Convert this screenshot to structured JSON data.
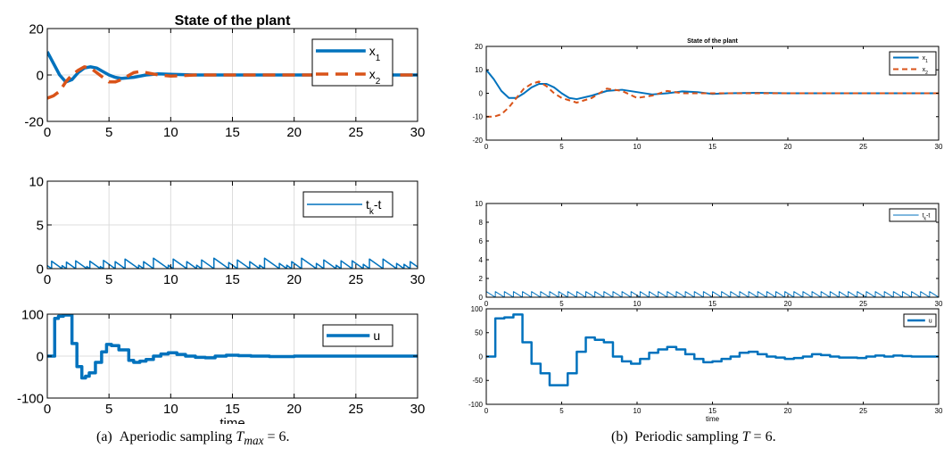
{
  "captions": {
    "a_label": "(a)",
    "a_text": "Aperiodic sampling",
    "a_sym": "T",
    "a_sub": "max",
    "a_val": " = 6.",
    "b_label": "(b)",
    "b_text": "Periodic sampling",
    "b_sym": "T",
    "b_val": " = 6."
  },
  "colors": {
    "x1": "#0072BD",
    "x2": "#D95319",
    "u": "#0072BD",
    "tk": "#0072BD"
  },
  "chart_data": [
    {
      "panel": "a",
      "type": "line",
      "title": "State of the plant",
      "xlabel": "",
      "ylabel": "",
      "xlim": [
        0,
        30
      ],
      "ylim": [
        -20,
        20
      ],
      "yticks": [
        -20,
        0,
        20
      ],
      "xticks": [
        0,
        5,
        10,
        15,
        20,
        25,
        30
      ],
      "grid": true,
      "legend_position": "top-right",
      "series": [
        {
          "name": "x1",
          "legend_label": "x",
          "legend_sub": "1",
          "style": "solid",
          "x": [
            0,
            0.5,
            1,
            1.5,
            2,
            2.5,
            3,
            3.5,
            4,
            4.5,
            5,
            5.5,
            6,
            7,
            8,
            9,
            10,
            12,
            14,
            16,
            18,
            20,
            25,
            30
          ],
          "y": [
            10,
            5,
            0,
            -3,
            -2,
            1,
            3,
            3.5,
            3,
            1.5,
            0,
            -1,
            -1.5,
            -1,
            0,
            0.5,
            0.3,
            0,
            0,
            0,
            0,
            0,
            0,
            0
          ]
        },
        {
          "name": "x2",
          "legend_label": "x",
          "legend_sub": "2",
          "style": "dashed",
          "x": [
            0,
            0.5,
            1,
            1.5,
            2,
            2.5,
            3,
            3.5,
            4,
            4.5,
            5,
            5.5,
            6,
            6.5,
            7,
            7.5,
            8,
            9,
            10,
            12,
            14,
            16,
            20,
            25,
            30
          ],
          "y": [
            -10,
            -9,
            -7,
            -3,
            0,
            2,
            3.5,
            3,
            1,
            -1,
            -3,
            -3,
            -2,
            -0.5,
            1,
            1.5,
            1,
            0,
            -0.5,
            0,
            0,
            0,
            0,
            0,
            0
          ]
        }
      ]
    },
    {
      "panel": "a",
      "type": "line",
      "xlim": [
        0,
        30
      ],
      "ylim": [
        0,
        10
      ],
      "yticks": [
        0,
        5,
        10
      ],
      "xticks": [
        0,
        5,
        10,
        15,
        20,
        25,
        30
      ],
      "grid": true,
      "legend_position": "top-right",
      "series": [
        {
          "name": "tk-t",
          "legend_label": "t",
          "legend_sub": "k",
          "legend_suffix": "-t",
          "tk": [
            0,
            0.35,
            1.2,
            1.55,
            2.3,
            3.2,
            3.45,
            4.3,
            4.55,
            5.5,
            6.3,
            7.4,
            7.8,
            8.6,
            9.8,
            10.2,
            11.3,
            12.1,
            12.5,
            13.5,
            14.7,
            15.4,
            16.4,
            17.2,
            17.6,
            18.8,
            19.4,
            19.8,
            20.6,
            21.8,
            22.4,
            23.4,
            23.8,
            24.7,
            25.6,
            26.1,
            27.2,
            28.3,
            28.9,
            29.4,
            30.2
          ]
        }
      ]
    },
    {
      "panel": "a",
      "type": "line",
      "xlabel": "time",
      "xlim": [
        0,
        30
      ],
      "ylim": [
        -100,
        100
      ],
      "yticks": [
        -100,
        0,
        100
      ],
      "xticks": [
        0,
        5,
        10,
        15,
        20,
        25,
        30
      ],
      "grid": true,
      "legend_position": "top-right",
      "series": [
        {
          "name": "u",
          "legend_label": "u",
          "style": "step",
          "x": [
            0,
            0.6,
            0.9,
            1.3,
            2.0,
            2.4,
            2.8,
            3.1,
            3.4,
            3.9,
            4.4,
            4.8,
            5.2,
            5.8,
            6.6,
            7.0,
            7.5,
            8.0,
            8.6,
            9.2,
            9.8,
            10.5,
            11.2,
            12.0,
            12.8,
            13.6,
            14.5,
            15.5,
            16.5,
            18,
            20,
            22,
            25,
            30
          ],
          "y": [
            0,
            90,
            95,
            98,
            30,
            -25,
            -52,
            -48,
            -40,
            -15,
            10,
            28,
            25,
            15,
            -10,
            -15,
            -12,
            -8,
            0,
            5,
            8,
            4,
            0,
            -3,
            -4,
            0,
            2,
            1,
            0,
            -1,
            0,
            0,
            0,
            0
          ]
        }
      ]
    },
    {
      "panel": "b",
      "type": "line",
      "title": "State of the plant",
      "xlim": [
        0,
        30
      ],
      "ylim": [
        -20,
        20
      ],
      "yticks": [
        -20,
        -10,
        0,
        10,
        20
      ],
      "xticks": [
        0,
        5,
        10,
        15,
        20,
        25,
        30
      ],
      "grid": false,
      "legend_position": "top-right",
      "series": [
        {
          "name": "x1",
          "legend_label": "x",
          "legend_sub": "1",
          "style": "solid",
          "x": [
            0,
            0.5,
            1,
            1.5,
            2,
            2.5,
            3,
            3.5,
            4,
            4.5,
            5,
            5.5,
            6,
            7,
            8,
            9,
            10,
            11,
            12,
            13,
            14,
            15,
            16,
            18,
            20,
            25,
            30
          ],
          "y": [
            10,
            6,
            1,
            -2,
            -2,
            0,
            2.5,
            4,
            4,
            2.5,
            0,
            -2,
            -2.5,
            -1,
            1,
            1.5,
            0.5,
            -0.5,
            0,
            0.8,
            0.5,
            -0.3,
            0,
            0.2,
            0,
            0,
            0
          ]
        },
        {
          "name": "x2",
          "legend_label": "x",
          "legend_sub": "2",
          "style": "dashed",
          "x": [
            0,
            0.5,
            1,
            1.5,
            2,
            2.5,
            3,
            3.5,
            4,
            4.5,
            5,
            5.5,
            6,
            6.5,
            7,
            7.5,
            8,
            9,
            10,
            11,
            12,
            13,
            14,
            16,
            18,
            20,
            25,
            30
          ],
          "y": [
            -10,
            -10,
            -9,
            -6,
            -2,
            2,
            4,
            5,
            3,
            0,
            -2,
            -3,
            -4,
            -3,
            -2,
            0,
            2,
            1,
            -2,
            -1,
            1,
            0,
            0,
            0,
            0,
            0,
            0,
            0
          ]
        }
      ]
    },
    {
      "panel": "b",
      "type": "line",
      "xlim": [
        0,
        30
      ],
      "ylim": [
        0,
        10
      ],
      "yticks": [
        0,
        2,
        4,
        6,
        8,
        10
      ],
      "xticks": [
        0,
        5,
        10,
        15,
        20,
        25,
        30
      ],
      "grid": false,
      "legend_position": "top-right",
      "series": [
        {
          "name": "tk-t",
          "legend_label": "t",
          "legend_sub": "k",
          "legend_suffix": "-t",
          "tk": [
            0,
            0.6,
            1.2,
            1.8,
            2.4,
            3.0,
            3.6,
            4.2,
            4.8,
            5.4,
            6.0,
            6.6,
            7.2,
            7.8,
            8.4,
            9.0,
            9.6,
            10.2,
            10.8,
            11.4,
            12.0,
            12.6,
            13.2,
            13.8,
            14.4,
            15.0,
            15.6,
            16.2,
            16.8,
            17.4,
            18.0,
            18.6,
            19.2,
            19.8,
            20.4,
            21.0,
            21.6,
            22.2,
            22.8,
            23.4,
            24.0,
            24.6,
            25.2,
            25.8,
            26.4,
            27.0,
            27.6,
            28.2,
            28.8,
            29.4,
            30.0
          ]
        }
      ]
    },
    {
      "panel": "b",
      "type": "line",
      "xlabel": "time",
      "xlim": [
        0,
        30
      ],
      "ylim": [
        -100,
        100
      ],
      "yticks": [
        -100,
        -50,
        0,
        50,
        100
      ],
      "xticks": [
        0,
        5,
        10,
        15,
        20,
        25,
        30
      ],
      "grid": false,
      "legend_position": "top-right",
      "series": [
        {
          "name": "u",
          "legend_label": "u",
          "style": "step",
          "x": [
            0,
            0.6,
            1.2,
            1.8,
            2.4,
            3.0,
            3.6,
            4.2,
            4.8,
            5.4,
            6.0,
            6.6,
            7.2,
            7.8,
            8.4,
            9.0,
            9.6,
            10.2,
            10.8,
            11.4,
            12.0,
            12.6,
            13.2,
            13.8,
            14.4,
            15.0,
            15.6,
            16.2,
            16.8,
            17.4,
            18.0,
            18.6,
            19.2,
            19.8,
            20.4,
            21.0,
            21.6,
            22.2,
            22.8,
            23.4,
            24.0,
            24.6,
            25.2,
            25.8,
            26.4,
            27.0,
            27.6,
            28.2,
            28.8,
            29.4,
            30.0
          ],
          "y": [
            0,
            80,
            82,
            88,
            30,
            -15,
            -35,
            -60,
            -60,
            -35,
            10,
            40,
            35,
            30,
            0,
            -10,
            -15,
            -5,
            8,
            15,
            20,
            15,
            5,
            -5,
            -12,
            -10,
            -5,
            0,
            8,
            10,
            5,
            0,
            -2,
            -5,
            -3,
            0,
            5,
            3,
            0,
            -2,
            -2,
            -3,
            0,
            2,
            0,
            2,
            1,
            0,
            0,
            0,
            0
          ]
        }
      ]
    }
  ]
}
